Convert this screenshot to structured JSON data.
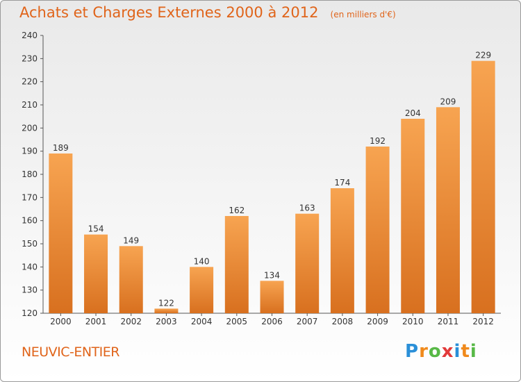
{
  "title": "Achats et Charges Externes 2000 à 2012",
  "subtitle": "(en milliers d'€)",
  "commune": "NEUVIC-ENTIER",
  "logo": {
    "letters": [
      "P",
      "r",
      "o",
      "x",
      "i",
      "t",
      "i"
    ],
    "colors": [
      "#2a8fd8",
      "#f08a1c",
      "#58b947",
      "#e23a3a",
      "#2a8fd8",
      "#f08a1c",
      "#58b947"
    ]
  },
  "colors": {
    "bar_light": "#f7a451",
    "bar_dark": "#d8701f",
    "text": "#333333",
    "accent": "#e0641a"
  },
  "chart_data": {
    "type": "bar",
    "title": "Achats et Charges Externes 2000 à 2012",
    "subtitle": "(en milliers d'€)",
    "categories": [
      "2000",
      "2001",
      "2002",
      "2003",
      "2004",
      "2005",
      "2006",
      "2007",
      "2008",
      "2009",
      "2010",
      "2011",
      "2012"
    ],
    "values": [
      189,
      154,
      149,
      122,
      140,
      162,
      134,
      163,
      174,
      192,
      204,
      209,
      229
    ],
    "ylim": [
      120,
      240
    ],
    "yticks": [
      120,
      130,
      140,
      150,
      160,
      170,
      180,
      190,
      200,
      210,
      220,
      230,
      240
    ],
    "grid": false,
    "legend": "none"
  }
}
